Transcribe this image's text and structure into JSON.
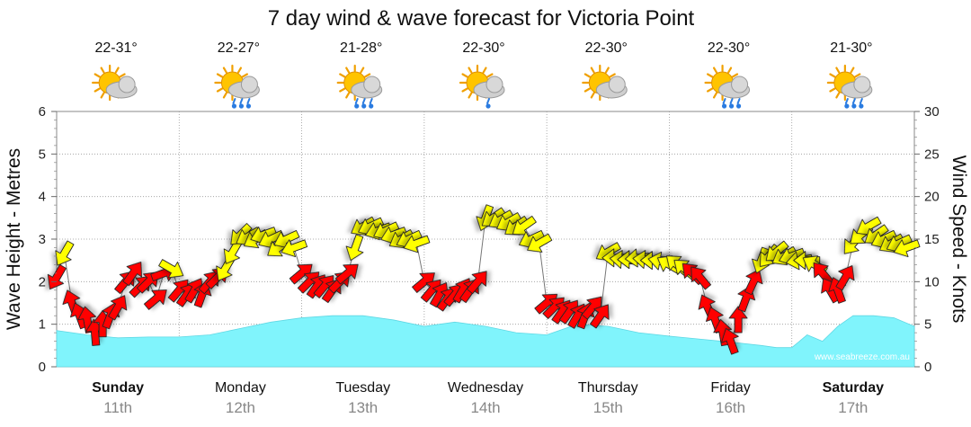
{
  "title": "7 day wind & wave forecast for Victoria Point",
  "watermark": "www.seabreeze.com.au",
  "colors": {
    "wave_fill": "#80f4fc",
    "wave_stroke": "#5fd8e4",
    "wind_strong": "#ff0000",
    "wind_moderate": "#ffff00",
    "grid": "#999999"
  },
  "days": [
    {
      "name": "Sunday",
      "date": "11th",
      "temp": "22-31°",
      "icon": "partly-cloudy-icon",
      "bold": true
    },
    {
      "name": "Monday",
      "date": "12th",
      "temp": "22-27°",
      "icon": "showers-icon",
      "bold": false
    },
    {
      "name": "Tuesday",
      "date": "13th",
      "temp": "21-28°",
      "icon": "showers-icon",
      "bold": false
    },
    {
      "name": "Wednesday",
      "date": "14th",
      "temp": "22-30°",
      "icon": "light-shower-icon",
      "bold": false
    },
    {
      "name": "Thursday",
      "date": "15th",
      "temp": "22-30°",
      "icon": "partly-cloudy-icon",
      "bold": false
    },
    {
      "name": "Friday",
      "date": "16th",
      "temp": "22-30°",
      "icon": "showers-icon",
      "bold": false
    },
    {
      "name": "Saturday",
      "date": "17th",
      "temp": "21-30°",
      "icon": "showers-icon",
      "bold": true
    }
  ],
  "chart_data": {
    "type": "area",
    "title": "7 day wind & wave forecast for Victoria Point",
    "x_unit": "hours from start of Sunday",
    "x_range": [
      0,
      168
    ],
    "left_axis": {
      "label": "Wave Height - Metres",
      "range": [
        0,
        6
      ],
      "ticks": [
        "0",
        "1",
        "2",
        "3",
        "4",
        "5",
        "6"
      ]
    },
    "right_axis": {
      "label": "Wind Speed - Knots",
      "range": [
        0,
        30
      ],
      "ticks": [
        "0",
        "5",
        "10",
        "15",
        "20",
        "25",
        "30"
      ]
    },
    "x_labels": [
      "Sunday 11th",
      "Monday 12th",
      "Tuesday 13th",
      "Wednesday 14th",
      "Thursday 15th",
      "Friday 16th",
      "Saturday 17th"
    ],
    "grid": true,
    "wave_height": {
      "name": "Wave Height",
      "x": [
        0,
        6,
        12,
        18,
        24,
        30,
        36,
        42,
        48,
        54,
        60,
        66,
        72,
        78,
        84,
        90,
        96,
        102,
        108,
        114,
        120,
        126,
        132,
        138,
        141,
        144,
        147,
        150,
        153,
        156,
        160,
        164,
        168
      ],
      "values": [
        0.85,
        0.75,
        0.68,
        0.7,
        0.7,
        0.75,
        0.9,
        1.05,
        1.15,
        1.2,
        1.2,
        1.1,
        0.95,
        1.05,
        0.95,
        0.8,
        0.75,
        1.0,
        0.95,
        0.8,
        0.72,
        0.65,
        0.58,
        0.5,
        0.45,
        0.45,
        0.75,
        0.6,
        0.95,
        1.2,
        1.2,
        1.15,
        0.95
      ]
    },
    "wind": {
      "name": "Wind Speed (knots)",
      "series": [
        {
          "name": "Sunday",
          "x": [
            0,
            1.5,
            3,
            4.5,
            6,
            7.5,
            9,
            10.5,
            12,
            13.5,
            15,
            16.5,
            18,
            19.5,
            21,
            22.5
          ],
          "knots": [
            10.5,
            13.3,
            7.5,
            6.0,
            5.5,
            4.0,
            5.0,
            6.0,
            7.0,
            10.0,
            11.0,
            9.5,
            10.0,
            8.0,
            11.0,
            11.5
          ],
          "direction_deg": [
            30,
            30,
            160,
            160,
            170,
            175,
            180,
            200,
            210,
            220,
            215,
            225,
            225,
            230,
            250,
            300
          ]
        },
        {
          "name": "Monday",
          "x": [
            24,
            25.5,
            27,
            28.5,
            30,
            31.5,
            33,
            34.5,
            36,
            37.5,
            39,
            40.5,
            42,
            43.5,
            45,
            46.5
          ],
          "knots": [
            9.0,
            8.5,
            9.0,
            8.5,
            10.0,
            10.5,
            11.5,
            13.5,
            15.5,
            15.3,
            15.0,
            15.5,
            15.0,
            14.0,
            15.0,
            14.0
          ],
          "direction_deg": [
            220,
            215,
            210,
            200,
            220,
            225,
            30,
            30,
            45,
            60,
            60,
            70,
            65,
            55,
            65,
            70
          ]
        },
        {
          "name": "Tuesday",
          "x": [
            48,
            49.5,
            51,
            52.5,
            54,
            55.5,
            57,
            58.5,
            60,
            61.5,
            63,
            64.5,
            66,
            67.5,
            69,
            70.5
          ],
          "knots": [
            11.0,
            10.0,
            9.5,
            9.5,
            9.0,
            10.0,
            11.0,
            14.0,
            16.5,
            16.5,
            16.0,
            16.0,
            15.5,
            15.0,
            15.0,
            14.5
          ],
          "direction_deg": [
            230,
            225,
            215,
            220,
            215,
            225,
            230,
            20,
            60,
            65,
            70,
            65,
            70,
            60,
            65,
            70
          ]
        },
        {
          "name": "Wednesday",
          "x": [
            72,
            73.5,
            75,
            76.5,
            78,
            79.5,
            81,
            82.5,
            84,
            85.5,
            87,
            88.5,
            90,
            91.5,
            93,
            94.5
          ],
          "knots": [
            10.0,
            9.0,
            8.5,
            8.0,
            8.5,
            9.0,
            9.0,
            10.0,
            17.5,
            17.5,
            17.3,
            17.0,
            16.5,
            16.5,
            15.0,
            14.5
          ],
          "direction_deg": [
            230,
            220,
            210,
            215,
            220,
            210,
            215,
            220,
            20,
            55,
            60,
            60,
            55,
            55,
            65,
            60
          ]
        },
        {
          "name": "Thursday",
          "x": [
            96,
            97.5,
            99,
            100.5,
            102,
            103.5,
            105,
            106.5,
            108,
            109.5,
            111,
            112.5,
            114,
            115.5,
            117,
            118.5
          ],
          "knots": [
            7.5,
            7.0,
            6.5,
            6.5,
            6.0,
            6.0,
            7.0,
            6.0,
            13.5,
            12.8,
            12.6,
            12.6,
            12.8,
            12.6,
            12.5,
            12.4
          ],
          "direction_deg": [
            230,
            225,
            215,
            215,
            210,
            200,
            220,
            215,
            60,
            90,
            95,
            90,
            85,
            95,
            90,
            100
          ]
        },
        {
          "name": "Friday",
          "x": [
            120,
            121.5,
            123,
            124.5,
            126,
            127.5,
            129,
            130.5,
            132,
            133.5,
            135,
            136.5,
            138,
            139.5,
            141,
            142.5
          ],
          "knots": [
            12.0,
            12.0,
            11.5,
            11.0,
            10.5,
            7.0,
            5.5,
            4.0,
            3.0,
            5.5,
            8.0,
            10.0,
            12.5,
            13.0,
            13.5,
            13.0
          ],
          "direction_deg": [
            120,
            130,
            130,
            135,
            140,
            155,
            160,
            170,
            160,
            180,
            200,
            205,
            20,
            40,
            50,
            60
          ]
        },
        {
          "name": "Saturday",
          "x": [
            144,
            145.5,
            147,
            148.5,
            150,
            151.5,
            153,
            154.5,
            156,
            157.5,
            159,
            160.5,
            162,
            163.5,
            165,
            166.5
          ],
          "knots": [
            13.0,
            12.5,
            12.5,
            12.0,
            11.0,
            9.0,
            9.0,
            10.5,
            14.5,
            15.5,
            16.5,
            15.5,
            15.0,
            14.5,
            14.5,
            14.0
          ],
          "direction_deg": [
            70,
            80,
            90,
            120,
            140,
            150,
            160,
            210,
            40,
            50,
            60,
            55,
            65,
            60,
            65,
            70
          ]
        }
      ]
    }
  }
}
